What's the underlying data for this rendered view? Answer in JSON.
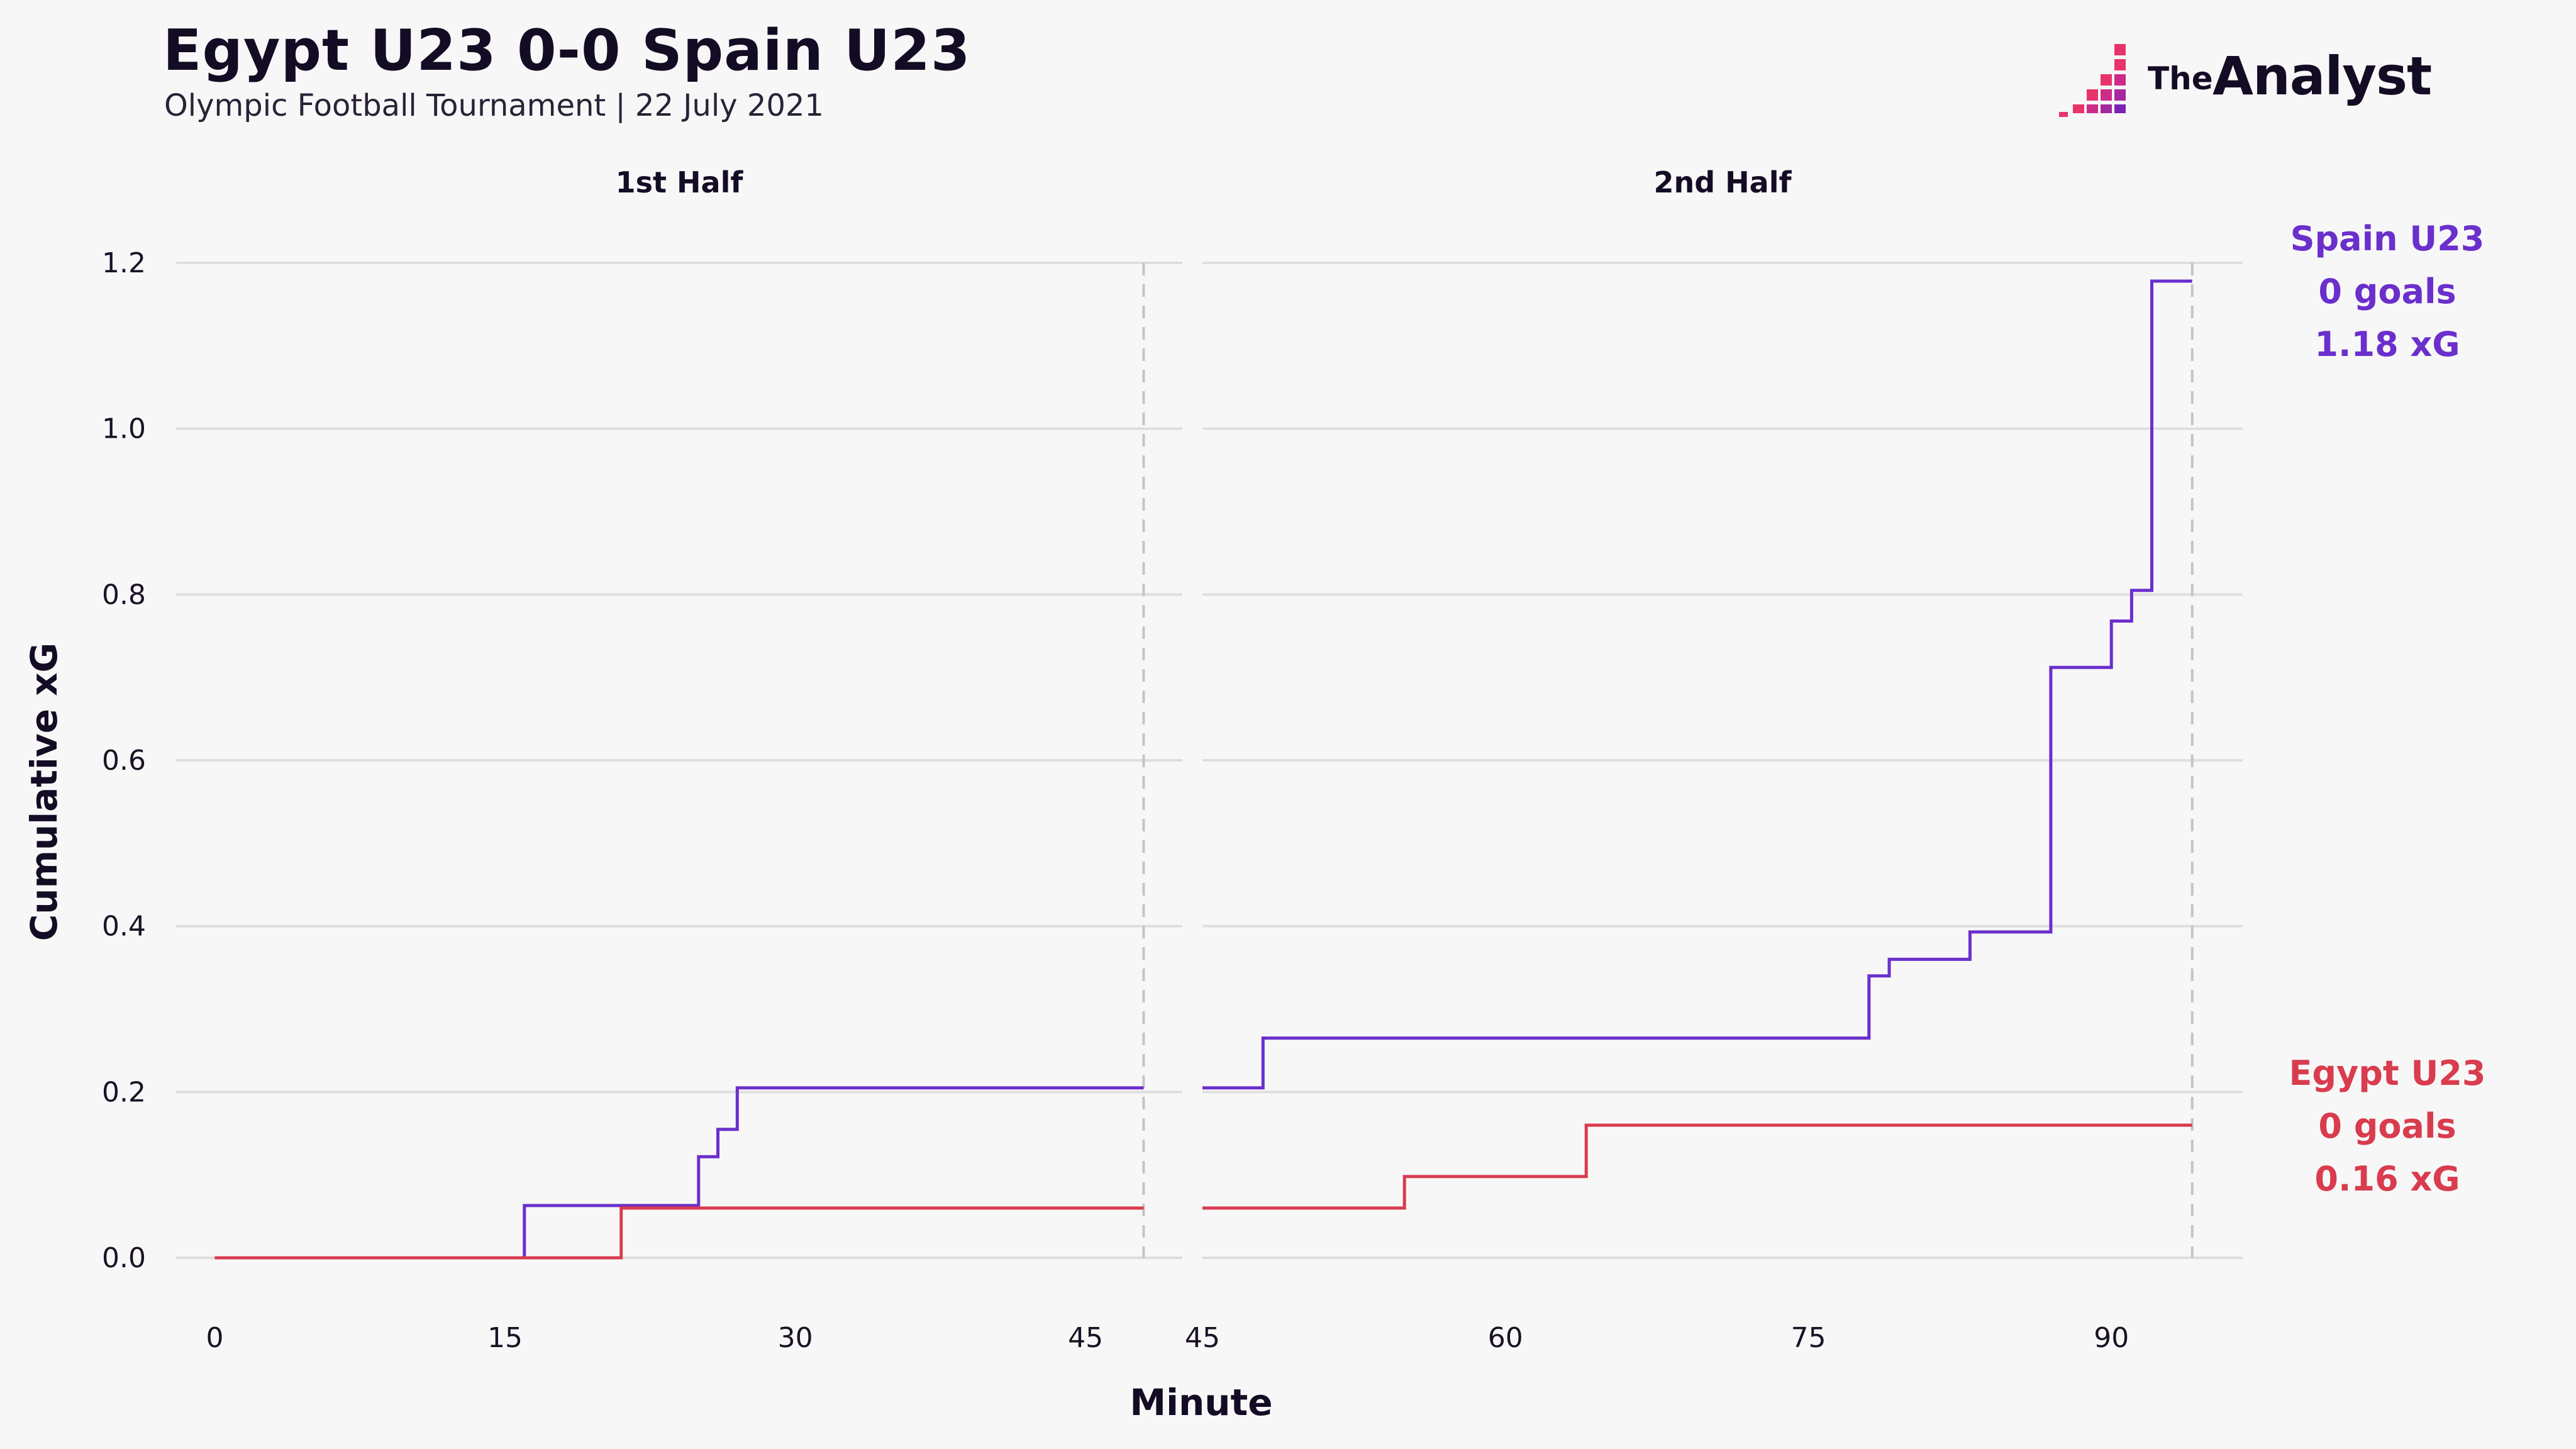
{
  "header": {
    "title": "Egypt U23 0-0 Spain U23",
    "subtitle": "Olympic Football Tournament | 22 July 2021"
  },
  "logo": {
    "the": "The",
    "name": "Analyst"
  },
  "chart_data": {
    "type": "line",
    "step": true,
    "ylabel": "Cumulative xG",
    "xlabel": "Minute",
    "ylim": [
      0,
      1.2
    ],
    "yticks": [
      0,
      0.2,
      0.4,
      0.6,
      0.8,
      1.0,
      1.2
    ],
    "ytick_labels": [
      "0.0",
      "0.2",
      "0.4",
      "0.6",
      "0.8",
      "1.0",
      "1.2"
    ],
    "grid": true,
    "panels": [
      {
        "name": "1st Half",
        "xlim": [
          -2,
          50
        ],
        "xticks": [
          0,
          15,
          30,
          45
        ],
        "end_line": 48,
        "series": [
          {
            "team": "Spain U23",
            "points": [
              [
                0,
                0
              ],
              [
                16,
                0
              ],
              [
                16,
                0.063
              ],
              [
                25,
                0.063
              ],
              [
                25,
                0.122
              ],
              [
                26,
                0.122
              ],
              [
                26,
                0.155
              ],
              [
                27,
                0.155
              ],
              [
                27,
                0.205
              ],
              [
                48,
                0.205
              ]
            ]
          },
          {
            "team": "Egypt U23",
            "points": [
              [
                0,
                0
              ],
              [
                21,
                0
              ],
              [
                21,
                0.06
              ],
              [
                48,
                0.06
              ]
            ]
          }
        ]
      },
      {
        "name": "2nd Half",
        "xlim": [
          45,
          96.5
        ],
        "xticks": [
          45,
          60,
          75,
          90
        ],
        "end_line": 94,
        "series": [
          {
            "team": "Spain U23",
            "points": [
              [
                45,
                0.205
              ],
              [
                48,
                0.205
              ],
              [
                48,
                0.265
              ],
              [
                78,
                0.265
              ],
              [
                78,
                0.34
              ],
              [
                79,
                0.34
              ],
              [
                79,
                0.36
              ],
              [
                83,
                0.36
              ],
              [
                83,
                0.393
              ],
              [
                87,
                0.393
              ],
              [
                87,
                0.712
              ],
              [
                90,
                0.712
              ],
              [
                90,
                0.768
              ],
              [
                91,
                0.768
              ],
              [
                91,
                0.805
              ],
              [
                92,
                0.805
              ],
              [
                92,
                1.178
              ],
              [
                94,
                1.178
              ]
            ]
          },
          {
            "team": "Egypt U23",
            "points": [
              [
                45,
                0.06
              ],
              [
                55,
                0.06
              ],
              [
                55,
                0.098
              ],
              [
                64,
                0.098
              ],
              [
                64,
                0.16
              ],
              [
                94,
                0.16
              ]
            ]
          }
        ]
      }
    ],
    "teams": [
      {
        "name": "Spain U23",
        "goals_text": "0 goals",
        "xg_text": "1.18 xG",
        "color": "#6b2fcc"
      },
      {
        "name": "Egypt U23",
        "goals_text": "0 goals",
        "xg_text": "0.16 xG",
        "color": "#d93c4e"
      }
    ]
  }
}
